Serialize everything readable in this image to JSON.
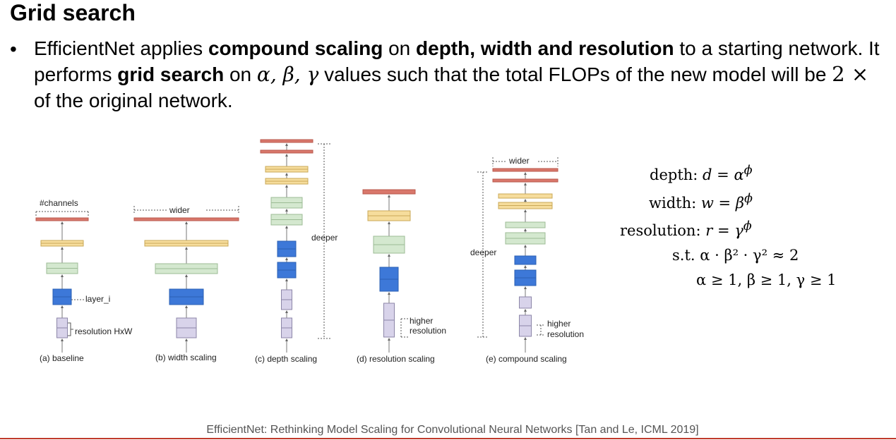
{
  "slide": {
    "title": "Grid search",
    "bullet": {
      "part1": "EfficientNet applies ",
      "bold1": "compound scaling",
      "part2": " on ",
      "bold2": "depth, width and resolution",
      "part3": " to a starting network. It performs ",
      "bold3": "grid search",
      "part4": " on ",
      "vars": "α, β, γ",
      "part5": " values such that the total FLOPs of the new model will be ",
      "factor": "2 ×",
      "part6": " of the original network."
    },
    "citation": "EfficientNet: Rethinking Model Scaling for Convolutional Neural Networks [Tan and Le, ICML 2019]"
  },
  "diagram": {
    "captions": [
      "(a) baseline",
      "(b) width scaling",
      "(c) depth scaling",
      "(d) resolution scaling",
      "(e) compound scaling"
    ],
    "annotations": {
      "channels": "#channels",
      "layer": "layer_i",
      "resolution": "resolution HxW",
      "wider": "wider",
      "deeper": "deeper",
      "higher": "higher",
      "res_word": "resolution"
    },
    "colors": {
      "red": "#d9776b",
      "yellow": "#f6dd9c",
      "green": "#d4e8cf",
      "blue": "#3d78d8",
      "purple": "#d8d3ea"
    }
  },
  "equations": {
    "depth": {
      "label": "depth:",
      "var": "d",
      "base": "α",
      "exp": "ϕ"
    },
    "width": {
      "label": "width:",
      "var": "w",
      "base": "β",
      "exp": "ϕ"
    },
    "resolution": {
      "label": "resolution:",
      "var": "r",
      "base": "γ",
      "exp": "ϕ"
    },
    "constraint": "s.t. α · β² · γ² ≈ 2",
    "bounds": "α ≥ 1, β ≥ 1, γ ≥ 1"
  }
}
